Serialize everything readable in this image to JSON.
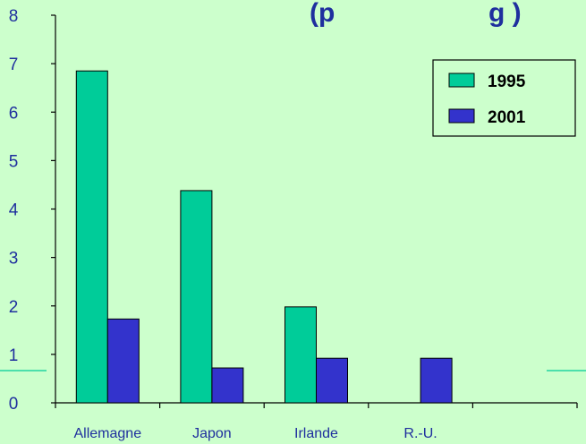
{
  "chart_data": {
    "type": "bar",
    "title": "(p",
    "title_right": "g )",
    "categories": [
      "Allemagne",
      "Japon",
      "Irlande",
      "R.-U.",
      ""
    ],
    "series": [
      {
        "name": "1995",
        "values": [
          6.85,
          4.38,
          1.98,
          null,
          null
        ],
        "color": "#00cc99"
      },
      {
        "name": "2001",
        "values": [
          1.73,
          0.72,
          0.92,
          0.92,
          null
        ],
        "color": "#3333cc"
      }
    ],
    "ylim": [
      0,
      8
    ],
    "yticks": [
      "0",
      "1",
      "2",
      "3",
      "4",
      "5",
      "6",
      "7",
      "8"
    ],
    "legend_position": "top-right",
    "grid": false,
    "background_color": "#ccffcc",
    "text_color": "#1f2f9e"
  }
}
